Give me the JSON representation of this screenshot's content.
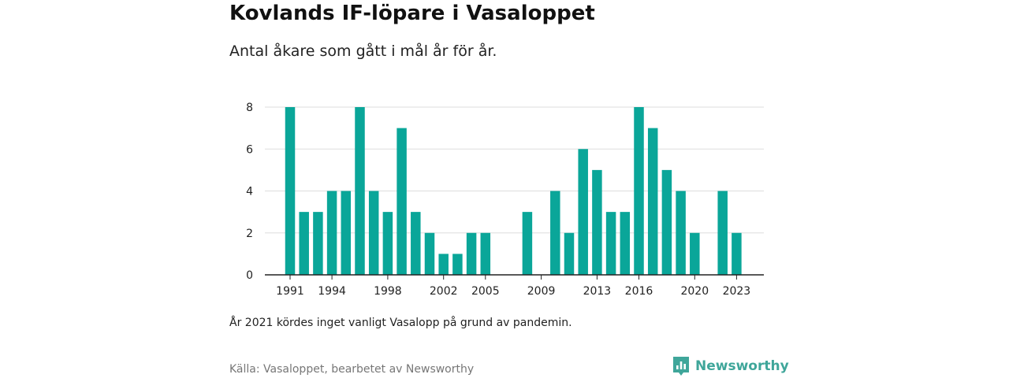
{
  "title": "Kovlands IF-löpare i Vasaloppet",
  "subtitle": "Antal åkare som gått i mål år för år.",
  "note": "År 2021 kördes inget vanligt Vasalopp på grund av pandemin.",
  "source": "Källa: Vasaloppet, bearbetet av Newsworthy",
  "brand": {
    "name": "Newsworthy",
    "icon": "newsworthy-logo-icon",
    "color": "#3fa69a"
  },
  "colors": {
    "bar": "#0aa699",
    "grid": "#dddddd",
    "axis": "#222222"
  },
  "chart_data": {
    "type": "bar",
    "x": [
      1991,
      1992,
      1993,
      1994,
      1995,
      1996,
      1997,
      1998,
      1999,
      2000,
      2001,
      2002,
      2003,
      2004,
      2005,
      2006,
      2007,
      2008,
      2009,
      2010,
      2011,
      2012,
      2013,
      2014,
      2015,
      2016,
      2017,
      2018,
      2019,
      2020,
      2021,
      2022,
      2023
    ],
    "values": [
      8,
      3,
      3,
      4,
      4,
      8,
      4,
      3,
      7,
      3,
      2,
      1,
      1,
      2,
      2,
      0,
      0,
      3,
      0,
      4,
      2,
      6,
      5,
      3,
      3,
      8,
      7,
      5,
      4,
      2,
      0,
      4,
      2
    ],
    "xticks": [
      1991,
      1994,
      1998,
      2002,
      2005,
      2009,
      2013,
      2016,
      2020,
      2023
    ],
    "yticks": [
      0,
      2,
      4,
      6,
      8
    ],
    "ylim": [
      0,
      8
    ],
    "xlabel": "",
    "ylabel": "",
    "grid": true,
    "legend": "none"
  }
}
